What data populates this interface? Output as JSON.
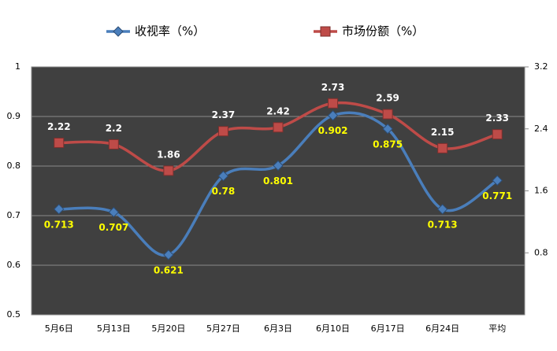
{
  "chart_data": {
    "type": "line",
    "categories": [
      "5月6日",
      "5月13日",
      "5月20日",
      "5月27日",
      "6月3日",
      "6月10日",
      "6月17日",
      "6月24日",
      "平均"
    ],
    "series": [
      {
        "name": "收视率（%）",
        "color": "#4a7ebb",
        "values": [
          0.713,
          0.707,
          0.621,
          0.78,
          0.801,
          0.902,
          0.875,
          0.713,
          0.771
        ]
      },
      {
        "name": "市场份额（%）",
        "color": "#be4b48",
        "axis": "y2",
        "values": [
          2.22,
          2.2,
          1.86,
          2.37,
          2.42,
          2.73,
          2.59,
          2.15,
          2.33
        ]
      }
    ],
    "ylim": [
      0.5,
      1
    ],
    "yticks": [
      0.5,
      0.6,
      0.7,
      0.8,
      0.9,
      1
    ],
    "y2lim": [
      0,
      3.2
    ],
    "y2ticks": [
      0.8,
      1.6,
      2.4,
      3.2
    ],
    "grid": true,
    "legend": "top",
    "smooth": true
  }
}
